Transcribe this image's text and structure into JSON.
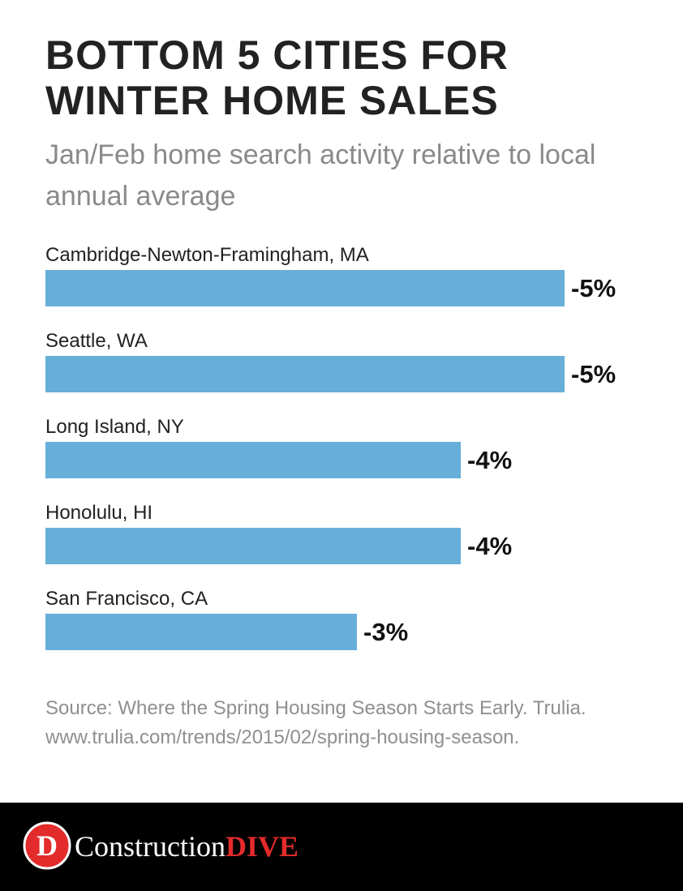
{
  "chart_data": {
    "type": "bar",
    "orientation": "horizontal",
    "title": "BOTTOM 5 CITIES FOR WINTER HOME SALES",
    "subtitle": "Jan/Feb home search activity relative to local annual average",
    "categories": [
      "Cambridge-Newton-Framingham, MA",
      "Seattle, WA",
      "Long Island, NY",
      "Honolulu, HI",
      "San Francisco, CA"
    ],
    "values": [
      -5,
      -5,
      -4,
      -4,
      -3
    ],
    "value_labels": [
      "-5%",
      "-5%",
      "-4%",
      "-4%",
      "-3%"
    ],
    "color": "#67afd9",
    "xlim": [
      0,
      -5
    ],
    "source": "Source: Where the Spring Housing Season Starts Early. Trulia. www.trulia.com/trends/2015/02/spring-housing-season."
  },
  "footer": {
    "logo_letter": "D",
    "brand": "Construction",
    "brand_bold": "DIVE"
  }
}
